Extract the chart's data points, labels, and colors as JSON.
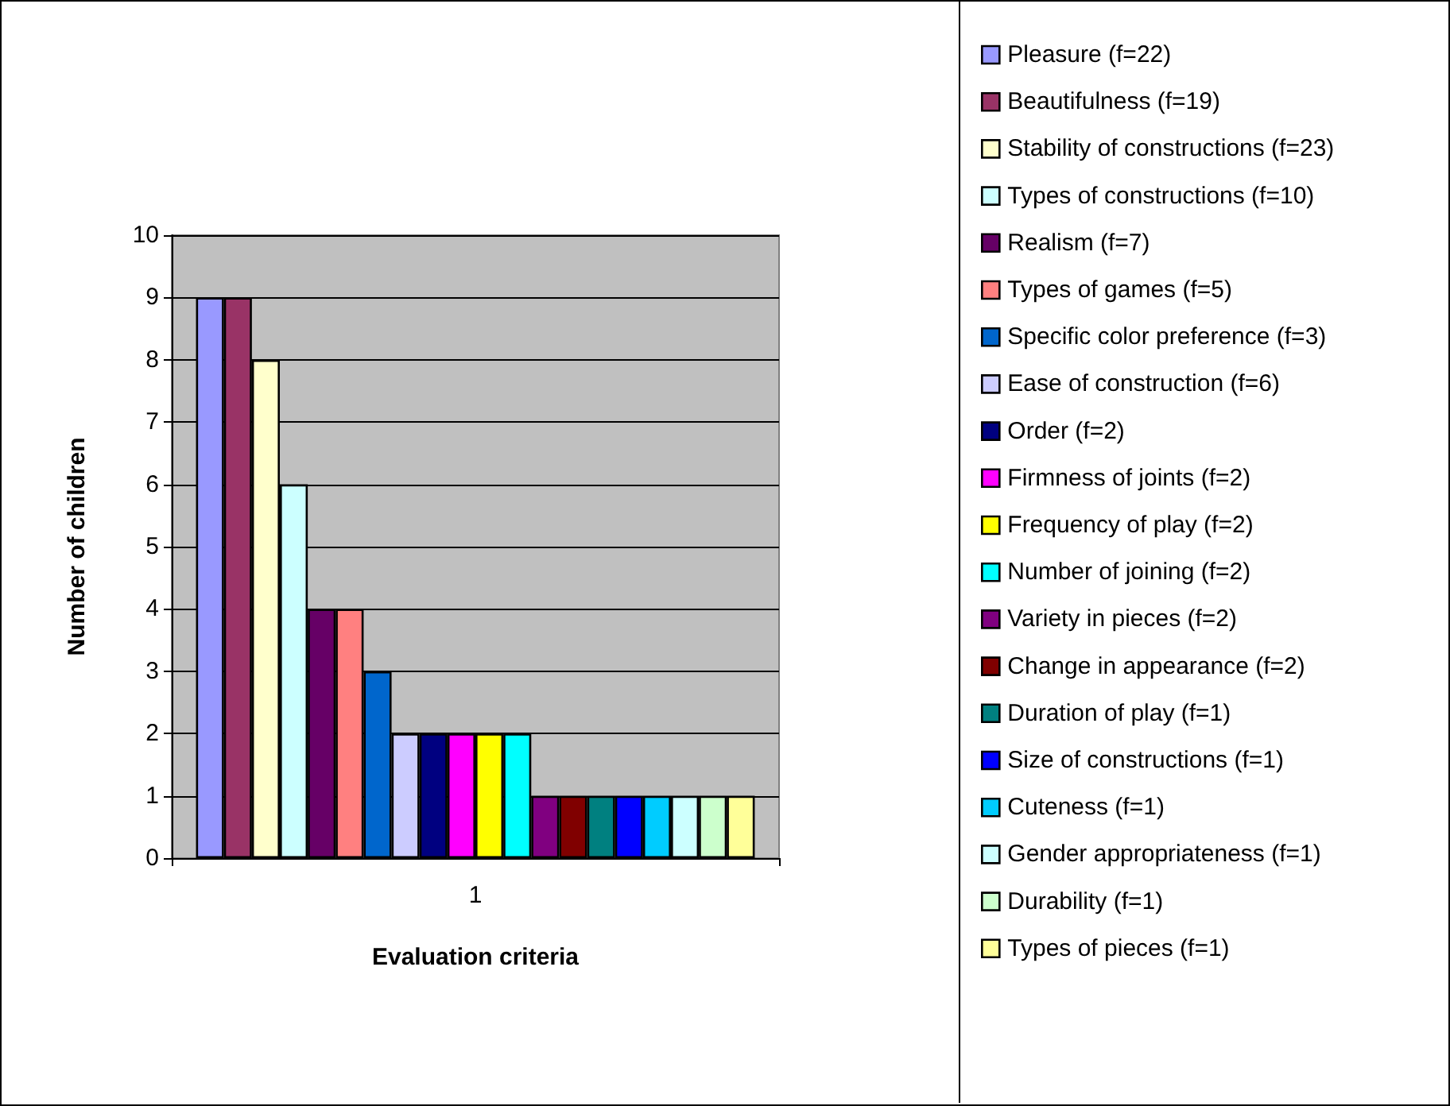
{
  "chart_data": {
    "type": "bar",
    "xlabel": "Evaluation criteria",
    "ylabel": "Number of children",
    "categories": [
      "1"
    ],
    "ylim": [
      0,
      10
    ],
    "yticks": [
      0,
      1,
      2,
      3,
      4,
      5,
      6,
      7,
      8,
      9,
      10
    ],
    "grid": "y",
    "legend": "right",
    "series": [
      {
        "name": "Pleasure (f=22)",
        "color": "#9999ff",
        "values": [
          9
        ]
      },
      {
        "name": "Beautifulness (f=19)",
        "color": "#993366",
        "values": [
          9
        ]
      },
      {
        "name": "Stability of constructions (f=23)",
        "color": "#ffffcc",
        "values": [
          8
        ]
      },
      {
        "name": "Types of constructions (f=10)",
        "color": "#ccffff",
        "values": [
          6
        ]
      },
      {
        "name": "Realism (f=7)",
        "color": "#660066",
        "values": [
          4
        ]
      },
      {
        "name": "Types of games (f=5)",
        "color": "#ff8080",
        "values": [
          4
        ]
      },
      {
        "name": "Specific color preference (f=3)",
        "color": "#0066cc",
        "values": [
          3
        ]
      },
      {
        "name": "Ease of construction (f=6)",
        "color": "#ccccff",
        "values": [
          2
        ]
      },
      {
        "name": "Order (f=2)",
        "color": "#000080",
        "values": [
          2
        ]
      },
      {
        "name": "Firmness of joints (f=2)",
        "color": "#ff00ff",
        "values": [
          2
        ]
      },
      {
        "name": "Frequency of play (f=2)",
        "color": "#ffff00",
        "values": [
          2
        ]
      },
      {
        "name": "Number of joining (f=2)",
        "color": "#00ffff",
        "values": [
          2
        ]
      },
      {
        "name": "Variety in pieces (f=2)",
        "color": "#800080",
        "values": [
          1
        ]
      },
      {
        "name": "Change in appearance (f=2)",
        "color": "#800000",
        "values": [
          1
        ]
      },
      {
        "name": "Duration of play (f=1)",
        "color": "#008080",
        "values": [
          1
        ]
      },
      {
        "name": "Size of constructions (f=1)",
        "color": "#0000ff",
        "values": [
          1
        ]
      },
      {
        "name": "Cuteness (f=1)",
        "color": "#00ccff",
        "values": [
          1
        ]
      },
      {
        "name": "Gender appropriateness (f=1)",
        "color": "#ccffff",
        "values": [
          1
        ]
      },
      {
        "name": "Durability (f=1)",
        "color": "#ccffcc",
        "values": [
          1
        ]
      },
      {
        "name": "Types of pieces (f=1)",
        "color": "#ffff99",
        "values": [
          1
        ]
      }
    ]
  }
}
